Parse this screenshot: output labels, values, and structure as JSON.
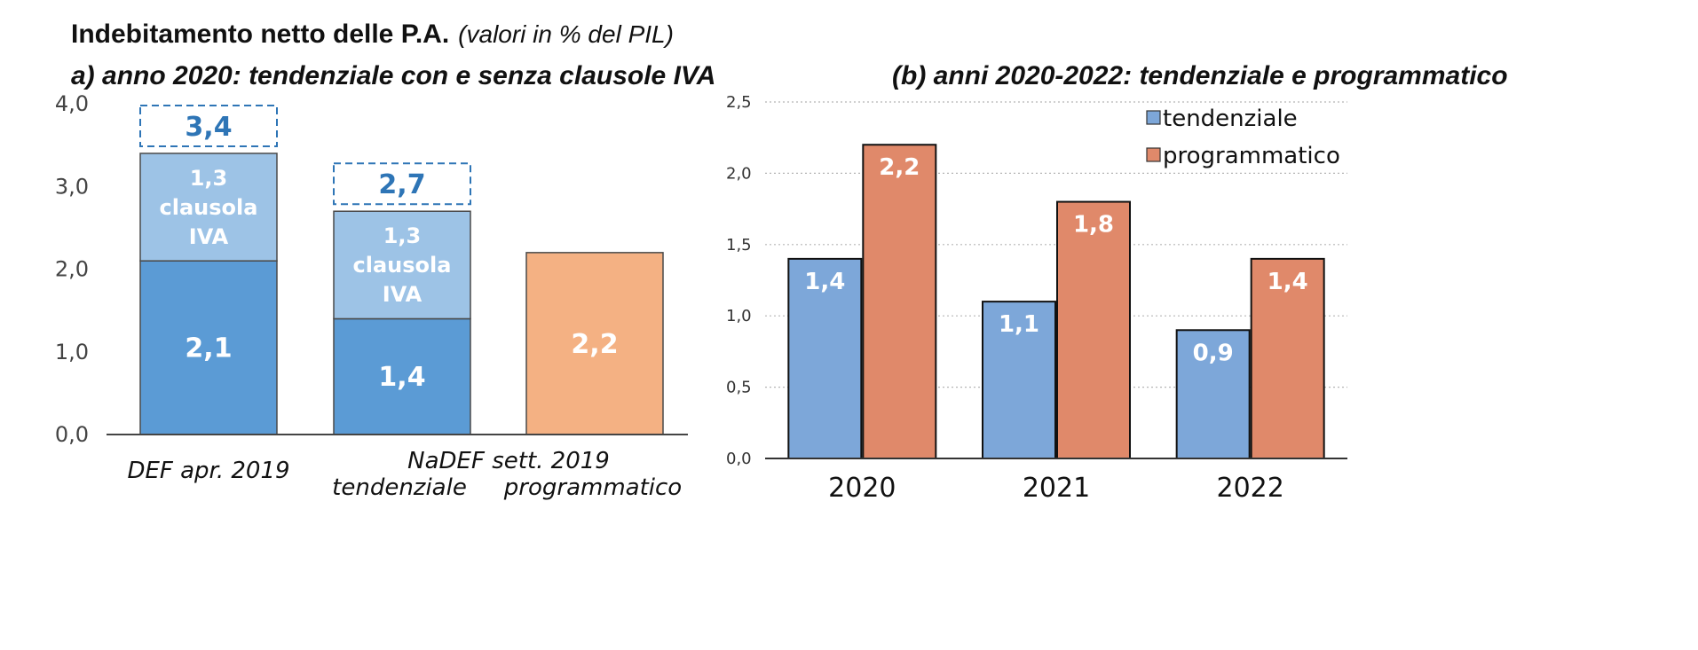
{
  "header": {
    "title": "Indebitamento netto delle P.A.",
    "subtitle_note": "(valori in % del PIL)"
  },
  "chart_data": [
    {
      "type": "bar",
      "stacked": true,
      "title": "a) anno 2020: tendenziale con e senza clausole IVA",
      "group_labels": {
        "def": "DEF apr. 2019",
        "nadef": "NaDEF sett. 2019",
        "tendenziale": "tendenziale",
        "programmatico": "programmatico"
      },
      "ylim": [
        0,
        4
      ],
      "yticks": [
        "0,0",
        "1,0",
        "2,0",
        "3,0",
        "4,0"
      ],
      "bars": [
        {
          "name": "def-apr-2019",
          "segments": [
            {
              "value": 2.1,
              "label": "2,1",
              "color": "#5b9bd5"
            },
            {
              "value": 1.3,
              "label": "1,3\nclausola\nIVA",
              "color": "#9dc3e6"
            }
          ],
          "total_label": "3,4"
        },
        {
          "name": "nadef-tendenziale",
          "segments": [
            {
              "value": 1.4,
              "label": "1,4",
              "color": "#5b9bd5"
            },
            {
              "value": 1.3,
              "label": "1,3\nclausola\nIVA",
              "color": "#9dc3e6"
            }
          ],
          "total_label": "2,7"
        },
        {
          "name": "nadef-programmatico",
          "segments": [
            {
              "value": 2.2,
              "label": "2,2",
              "color": "#f4b183"
            }
          ]
        }
      ]
    },
    {
      "type": "bar",
      "title": "(b) anni 2020-2022: tendenziale e programmatico",
      "categories": [
        "2020",
        "2021",
        "2022"
      ],
      "ylim": [
        0,
        2.5
      ],
      "yticks": [
        "0,0",
        "0,5",
        "1,0",
        "1,5",
        "2,0",
        "2,5"
      ],
      "grid": true,
      "legend_position": "top-right",
      "series": [
        {
          "name": "tendenziale",
          "values": [
            1.4,
            1.1,
            0.9
          ],
          "labels": [
            "1,4",
            "1,1",
            "0,9"
          ],
          "color": "#7da7d9"
        },
        {
          "name": "programmatico",
          "values": [
            2.2,
            1.8,
            1.4
          ],
          "labels": [
            "2,2",
            "1,8",
            "1,4"
          ],
          "color": "#e0896a"
        }
      ]
    }
  ]
}
